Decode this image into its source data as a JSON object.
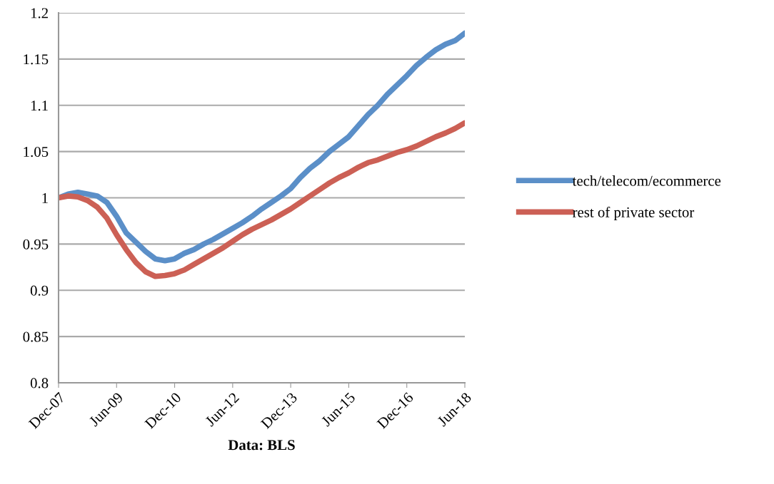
{
  "chart_data": {
    "type": "line",
    "xlabel": "Data: BLS",
    "x": [
      "2007-12",
      "2008-03",
      "2008-06",
      "2008-09",
      "2008-12",
      "2009-03",
      "2009-06",
      "2009-09",
      "2009-12",
      "2010-03",
      "2010-06",
      "2010-09",
      "2010-12",
      "2011-03",
      "2011-06",
      "2011-09",
      "2011-12",
      "2012-03",
      "2012-06",
      "2012-09",
      "2012-12",
      "2013-03",
      "2013-06",
      "2013-09",
      "2013-12",
      "2014-03",
      "2014-06",
      "2014-09",
      "2014-12",
      "2015-03",
      "2015-06",
      "2015-09",
      "2015-12",
      "2016-03",
      "2016-06",
      "2016-09",
      "2016-12",
      "2017-03",
      "2017-06",
      "2017-09",
      "2017-12",
      "2018-03",
      "2018-06"
    ],
    "series": [
      {
        "name": "tech/telecom/ecommerce",
        "color": "#5b8fc8",
        "values": [
          1.0,
          1.004,
          1.006,
          1.004,
          1.002,
          0.995,
          0.98,
          0.962,
          0.952,
          0.942,
          0.934,
          0.932,
          0.934,
          0.94,
          0.944,
          0.95,
          0.955,
          0.961,
          0.967,
          0.973,
          0.98,
          0.988,
          0.995,
          1.002,
          1.01,
          1.022,
          1.032,
          1.04,
          1.05,
          1.058,
          1.066,
          1.078,
          1.09,
          1.1,
          1.112,
          1.122,
          1.132,
          1.143,
          1.152,
          1.16,
          1.166,
          1.17,
          1.178
        ]
      },
      {
        "name": "rest of private sector",
        "color": "#cc6055",
        "values": [
          1.0,
          1.002,
          1.001,
          0.997,
          0.99,
          0.978,
          0.96,
          0.944,
          0.93,
          0.92,
          0.915,
          0.916,
          0.918,
          0.922,
          0.928,
          0.934,
          0.94,
          0.946,
          0.953,
          0.96,
          0.966,
          0.971,
          0.976,
          0.982,
          0.988,
          0.995,
          1.002,
          1.009,
          1.016,
          1.022,
          1.027,
          1.033,
          1.038,
          1.041,
          1.045,
          1.049,
          1.052,
          1.056,
          1.061,
          1.066,
          1.07,
          1.075,
          1.081
        ]
      }
    ],
    "xlim": [
      "2007-12",
      "2018-06"
    ],
    "xticks": [
      {
        "value": "2007-12",
        "label": "Dec-07"
      },
      {
        "value": "2009-06",
        "label": "Jun-09"
      },
      {
        "value": "2010-12",
        "label": "Dec-10"
      },
      {
        "value": "2012-06",
        "label": "Jun-12"
      },
      {
        "value": "2013-12",
        "label": "Dec-13"
      },
      {
        "value": "2015-06",
        "label": "Jun-15"
      },
      {
        "value": "2016-12",
        "label": "Dec-16"
      },
      {
        "value": "2018-06",
        "label": "Jun-18"
      }
    ],
    "ylim": [
      0.8,
      1.2
    ],
    "yticks": [
      0.8,
      0.85,
      0.9,
      0.95,
      1,
      1.05,
      1.1,
      1.15,
      1.2
    ],
    "grid": "y",
    "legend": "right",
    "marker": "none",
    "line_style": "solid"
  }
}
